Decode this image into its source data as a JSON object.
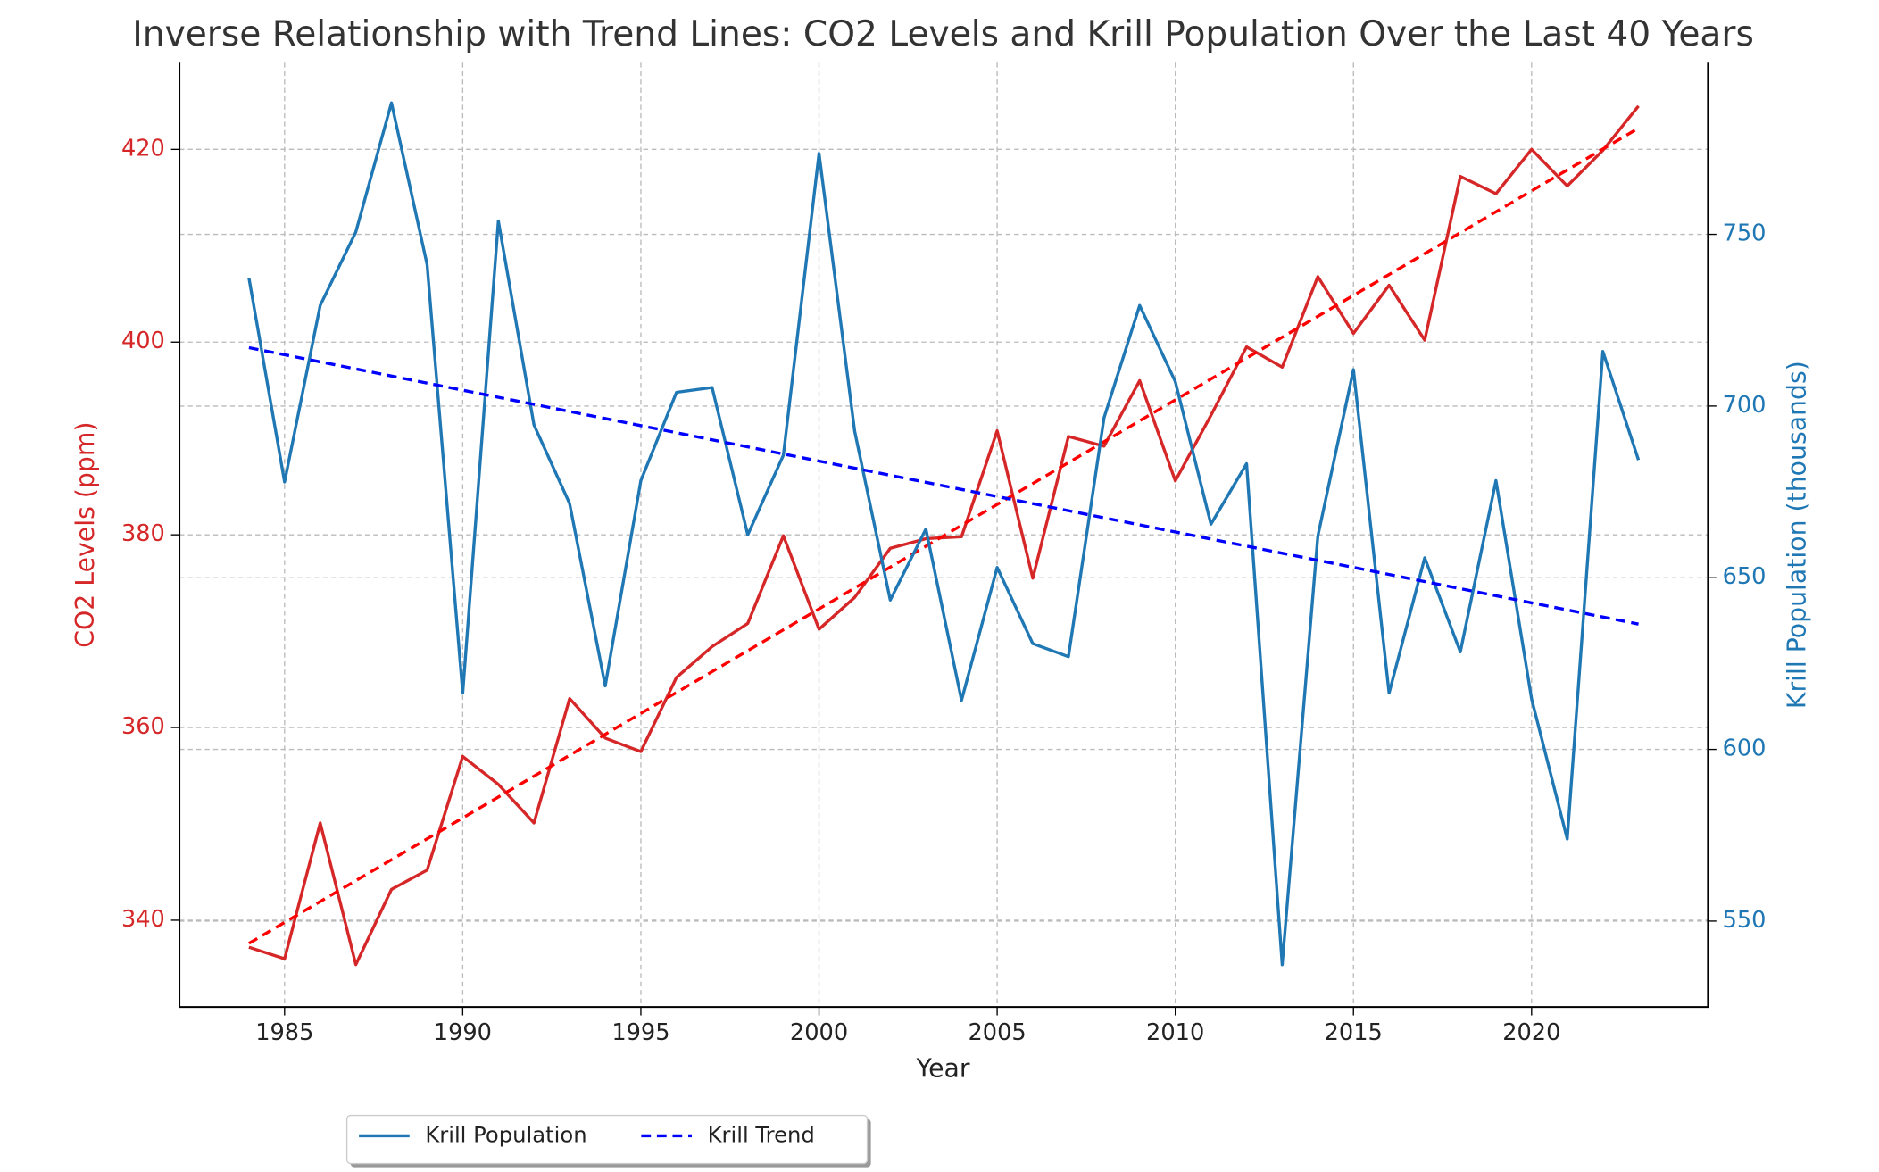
{
  "chart_data": {
    "type": "line",
    "title": "Inverse Relationship with Trend Lines: CO2 Levels and Krill Population Over the Last 40 Years",
    "xlabel": "Year",
    "ylabel": "CO2 Levels (ppm)",
    "y2label": "Krill Population (thousands)",
    "x": [
      1984,
      1985,
      1986,
      1987,
      1988,
      1989,
      1990,
      1991,
      1992,
      1993,
      1994,
      1995,
      1996,
      1997,
      1998,
      1999,
      2000,
      2001,
      2002,
      2003,
      2004,
      2005,
      2006,
      2007,
      2008,
      2009,
      2010,
      2011,
      2012,
      2013,
      2014,
      2015,
      2016,
      2017,
      2018,
      2019,
      2020,
      2021,
      2022,
      2023
    ],
    "series": [
      {
        "name": "CO2 Levels",
        "color": "#d62728",
        "dash": false,
        "legend": false,
        "values": [
          337.2,
          336.0,
          350.1,
          335.4,
          343.2,
          345.2,
          357.0,
          354.1,
          350.1,
          363.0,
          358.9,
          357.5,
          365.2,
          368.4,
          370.8,
          379.9,
          370.2,
          373.5,
          378.6,
          379.6,
          379.8,
          390.8,
          375.5,
          390.2,
          389.2,
          396.0,
          385.6,
          392.4,
          399.5,
          397.4,
          406.8,
          400.9,
          405.9,
          400.2,
          417.2,
          415.4,
          420.0,
          416.2,
          419.9,
          424.5
        ]
      },
      {
        "name": "CO2 Trend",
        "color": "#ff0000",
        "dash": true,
        "legend": false,
        "x": [
          1984,
          2023
        ],
        "values": [
          337.6,
          422.2
        ]
      },
      {
        "name": "Krill Population",
        "color": "#1f77b4",
        "dash": false,
        "legend": true,
        "axis": "y2",
        "values": [
          737.3,
          677.9,
          729.3,
          750.7,
          788.3,
          741.2,
          616.4,
          753.9,
          694.5,
          671.6,
          618.5,
          678.3,
          704.0,
          705.4,
          662.5,
          685.7,
          773.6,
          692.7,
          643.5,
          664.2,
          614.3,
          653.0,
          630.8,
          627.0,
          696.6,
          729.3,
          707.1,
          665.6,
          683.2,
          537.3,
          662.1,
          710.6,
          616.4,
          655.8,
          628.4,
          678.3,
          614.7,
          573.9,
          715.9,
          684.3
        ]
      },
      {
        "name": "Krill Trend",
        "color": "#0000ff",
        "dash": true,
        "legend": true,
        "axis": "y2",
        "x": [
          1984,
          2023
        ],
        "values": [
          717.0,
          636.5
        ]
      }
    ],
    "xlim": [
      1982.05,
      2024.95
    ],
    "xticks": [
      1985,
      1990,
      1995,
      2000,
      2005,
      2010,
      2015,
      2020
    ],
    "ylim": [
      331,
      429
    ],
    "yticks": [
      340,
      360,
      380,
      400,
      420
    ],
    "ytick_color": "#d62728",
    "y2lim": [
      525,
      800
    ],
    "y2ticks": [
      550,
      600,
      650,
      700,
      750
    ],
    "y2tick_color": "#1f77b4",
    "grid": true,
    "legend_position": "below-left"
  }
}
